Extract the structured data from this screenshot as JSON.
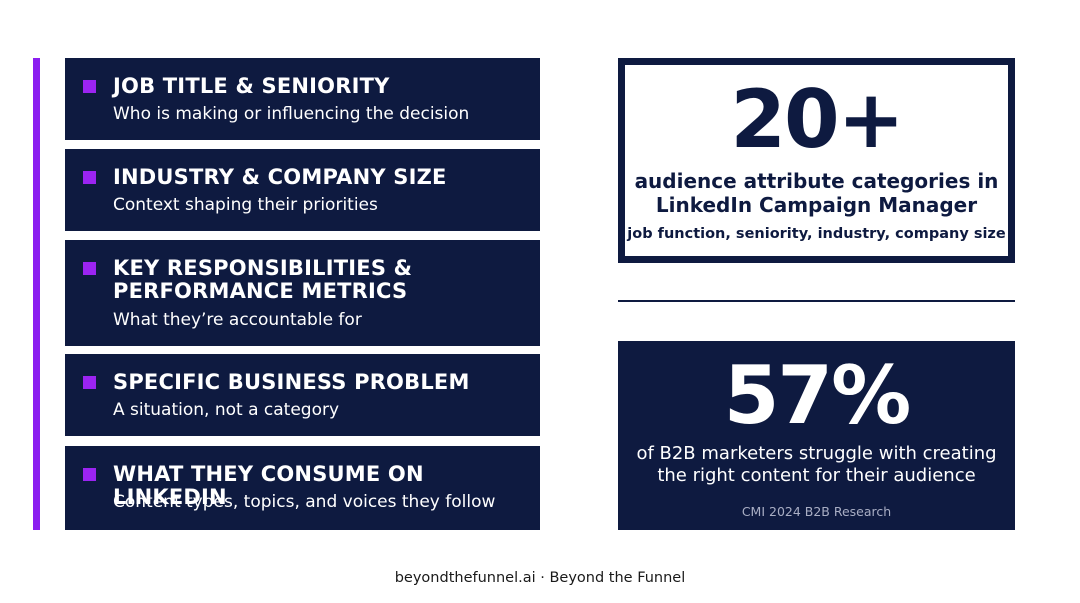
{
  "items": [
    {
      "title": "JOB TITLE & SENIORITY",
      "subtitle": "Who is making or influencing the decision"
    },
    {
      "title": "INDUSTRY & COMPANY SIZE",
      "subtitle": "Context shaping their priorities"
    },
    {
      "title_line1": "KEY RESPONSIBILITIES &",
      "title_line2": "PERFORMANCE METRICS",
      "subtitle": "What they’re accountable for"
    },
    {
      "title": "SPECIFIC BUSINESS PROBLEM",
      "subtitle": "A situation, not a category"
    },
    {
      "title": "WHAT THEY CONSUME ON LINKEDIN",
      "subtitle": "Content types, topics, and voices they follow"
    }
  ],
  "stat1": {
    "value": "20+",
    "desc_line1": "audience attribute categories in",
    "desc_line2": "LinkedIn Campaign Manager",
    "note": "job function, seniority, industry, company size"
  },
  "stat2": {
    "value": "57%",
    "desc_line1": "of B2B marketers struggle with creating",
    "desc_line2": "the right content for their audience",
    "source": "CMI 2024 B2B Research"
  },
  "footer": "beyondthefunnel.ai · Beyond the Funnel",
  "colors": {
    "navy": "#0e1a40",
    "purple_accent": "#8b1ef0",
    "bullet_purple": "#9b24f2"
  }
}
